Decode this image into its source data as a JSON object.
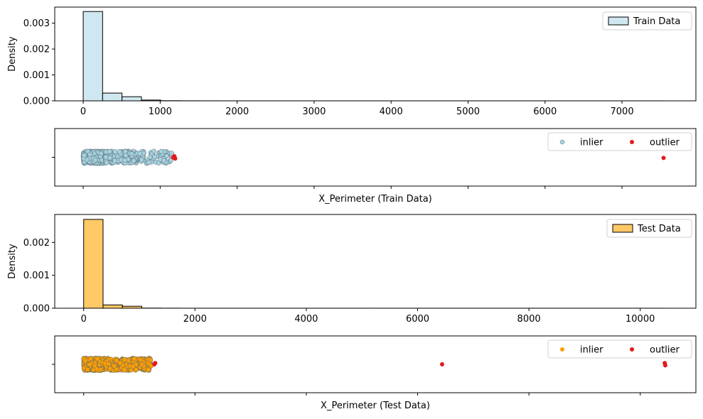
{
  "chart_data": [
    {
      "type": "bar",
      "subtype": "histogram",
      "ylabel": "Density",
      "xlim": [
        -370,
        7960
      ],
      "ylim": [
        0,
        0.00362
      ],
      "x_ticks": [
        0,
        1000,
        2000,
        3000,
        4000,
        5000,
        6000,
        7000
      ],
      "y_ticks": [
        0.0,
        0.001,
        0.002,
        0.003
      ],
      "y_tick_labels": [
        "0.000",
        "0.001",
        "0.002",
        "0.003"
      ],
      "bin_width": 252,
      "bin_edges_start": 0,
      "values": [
        0.00345,
        0.0003,
        0.00016,
        3e-05,
        6e-06,
        3e-06,
        2e-06,
        1e-06,
        1e-06,
        1e-06,
        1e-06,
        1e-06,
        1e-06,
        1e-06,
        1e-06,
        1e-06,
        1e-06,
        1e-06,
        1e-06,
        1e-06,
        1e-06,
        1e-06,
        1e-06,
        1e-06,
        1e-06,
        1e-06,
        1e-06,
        1e-06,
        1e-06,
        1e-06
      ],
      "legend": [
        {
          "name": "Train Data",
          "color": "#cfe7f0"
        }
      ],
      "legend_position": "top-right",
      "color": "#cfe7f0"
    },
    {
      "type": "scatter",
      "subtype": "strip",
      "xlabel": "X_Perimeter (Train Data)",
      "xlim": [
        -370,
        7960
      ],
      "legend": [
        {
          "name": "inlier",
          "color": "#a6d2e0"
        },
        {
          "name": "outlier",
          "color": "#e41a1c"
        }
      ],
      "legend_position": "top-right",
      "inlier_clusters": [
        [
          0,
          280,
          0.55
        ],
        [
          280,
          700,
          0.35
        ],
        [
          700,
          1150,
          0.1
        ]
      ],
      "outliers": [
        [
          1170,
          0.02
        ],
        [
          1185,
          -0.08
        ],
        [
          1195,
          0.1
        ],
        [
          1175,
          -0.02
        ],
        [
          7540,
          0.05
        ]
      ]
    },
    {
      "type": "bar",
      "subtype": "histogram",
      "ylabel": "Density",
      "xlim": [
        -520,
        11000
      ],
      "ylim": [
        0,
        0.00285
      ],
      "x_ticks": [
        0,
        2000,
        4000,
        6000,
        8000,
        10000
      ],
      "y_ticks": [
        0.0,
        0.001,
        0.002
      ],
      "y_tick_labels": [
        "0.000",
        "0.001",
        "0.002"
      ],
      "bin_width": 348,
      "bin_edges_start": 0,
      "values": [
        0.0027,
        0.0001,
        6e-05,
        4e-06,
        2e-06,
        1e-06,
        1e-06,
        1e-06,
        1e-06,
        1e-06,
        1e-06,
        1e-06,
        1e-06,
        1e-06,
        1e-06,
        1e-06,
        1e-06,
        1e-06,
        1e-06,
        1e-06,
        1e-06,
        1e-06,
        1e-06,
        1e-06,
        1e-06,
        1e-06,
        1e-06,
        1e-06,
        1e-06,
        1e-06
      ],
      "legend": [
        {
          "name": "Test Data",
          "color": "#ffc966"
        }
      ],
      "legend_position": "top-right",
      "color": "#ffc966"
    },
    {
      "type": "scatter",
      "subtype": "strip",
      "xlabel": "X_Perimeter (Test Data)",
      "xlim": [
        -520,
        11000
      ],
      "legend": [
        {
          "name": "inlier",
          "color": "#ff9f00"
        },
        {
          "name": "outlier",
          "color": "#e41a1c"
        }
      ],
      "legend_position": "top-right",
      "inlier_clusters": [
        [
          0,
          380,
          0.6
        ],
        [
          380,
          1200,
          0.4
        ]
      ],
      "extra_inliers": [
        [
          1170,
          -0.05
        ],
        [
          1210,
          0.12
        ]
      ],
      "outliers": [
        [
          1270,
          0.0
        ],
        [
          1285,
          -0.1
        ],
        [
          6440,
          0.0
        ],
        [
          10440,
          -0.1
        ],
        [
          10450,
          0.08
        ]
      ]
    }
  ],
  "colors": {
    "train_bar": "#cfe7f0",
    "train_point": "#a6d2e0",
    "test_bar": "#ffc966",
    "test_point": "#ff9f00",
    "outlier": "#e41a1c",
    "edge": "#000000",
    "point_edge": "#5a6a70"
  }
}
